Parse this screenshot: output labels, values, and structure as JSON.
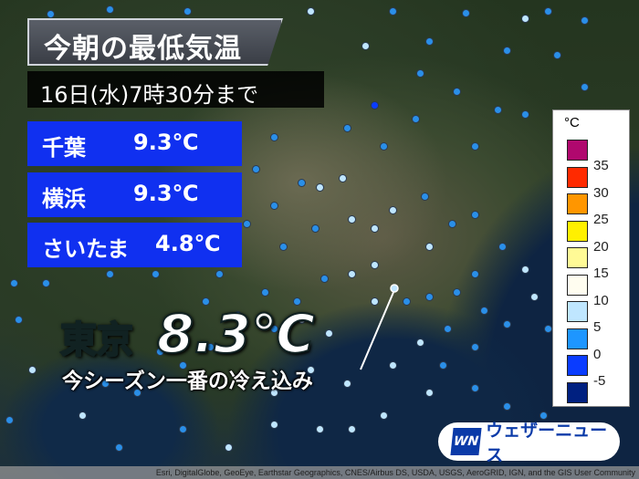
{
  "header": {
    "title": "今朝の最低気温",
    "subtitle": "16日(水)7時30分まで"
  },
  "cities": [
    {
      "name": "千葉",
      "value": "9.3℃"
    },
    {
      "name": "横浜",
      "value": "9.3℃"
    },
    {
      "name": "さいたま",
      "value": "4.8℃"
    }
  ],
  "highlight": {
    "name": "東京",
    "value": "8.3℃",
    "note": "今シーズン一番の冷え込み"
  },
  "legend": {
    "unit": "°C",
    "items": [
      {
        "color": "#b0086e",
        "label": "35"
      },
      {
        "color": "#ff2a00",
        "label": "30"
      },
      {
        "color": "#ff9600",
        "label": "25"
      },
      {
        "color": "#fff000",
        "label": "20"
      },
      {
        "color": "#fffa96",
        "label": "15"
      },
      {
        "color": "#fffdf0",
        "label": "10"
      },
      {
        "color": "#bfe6ff",
        "label": "5"
      },
      {
        "color": "#1e96ff",
        "label": "0"
      },
      {
        "color": "#0a3cff",
        "label": "-5"
      },
      {
        "color": "#002080",
        "label": ""
      }
    ]
  },
  "logo": {
    "mark": "WN",
    "text": "ウェザーニュース"
  },
  "attribution": "Esri, DigitalGlobe, GeoEye, Earthstar Geographics, CNES/Airbus DS, USDA, USGS, AeroGRID, IGN, and the GIS User Community"
}
